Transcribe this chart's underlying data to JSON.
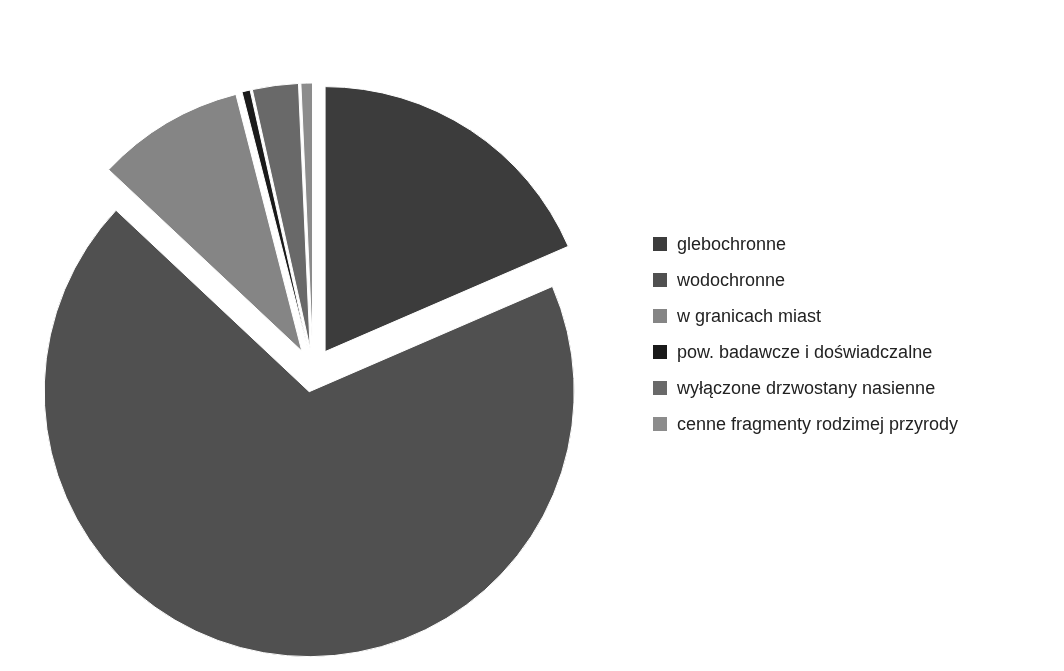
{
  "chart_data": {
    "type": "pie",
    "categories": [
      "glebochronne",
      "wodochronne",
      "w granicach miast",
      "pow. badawcze i doświadczalne",
      "wyłączone drzwostany nasienne",
      "cenne fragmenty rodzimej przyrody"
    ],
    "values": [
      18.5,
      68.5,
      9,
      0.5,
      2.8,
      0.7
    ],
    "colors": [
      "#3c3c3c",
      "#505050",
      "#858585",
      "#1a1a1a",
      "#696969",
      "#8c8c8c"
    ],
    "legend": "right"
  }
}
